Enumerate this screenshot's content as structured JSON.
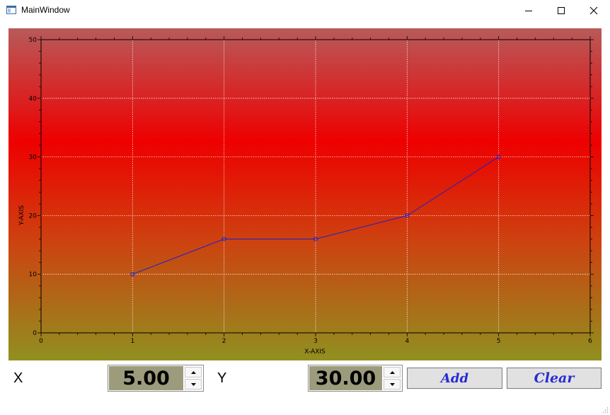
{
  "window": {
    "title": "MainWindow",
    "minimize_icon": "minimize-icon",
    "maximize_icon": "maximize-icon",
    "close_icon": "close-icon"
  },
  "controls": {
    "x_label": "X",
    "y_label": "Y",
    "x_value": "5.00",
    "y_value": "30.00",
    "add_label": "Add",
    "clear_label": "Clear",
    "button_text_color": "#2a2ad4",
    "spin_bg_color": "#9c9c7c"
  },
  "chart_data": {
    "type": "line",
    "title": "",
    "xlabel": "X-AXIS",
    "ylabel": "Y-AXIS",
    "xlim": [
      0,
      6
    ],
    "ylim": [
      0,
      50
    ],
    "x_ticks": [
      0,
      1,
      2,
      3,
      4,
      5,
      6
    ],
    "y_ticks": [
      0,
      10,
      20,
      30,
      40,
      50
    ],
    "grid": true,
    "series": [
      {
        "x": [
          1,
          2,
          3,
          4,
          5
        ],
        "y": [
          10,
          16,
          16,
          20,
          30
        ],
        "color": "#2020c8"
      }
    ],
    "background_gradient": [
      "#b85a5a",
      "#ee0000",
      "#cc4410",
      "#909020"
    ]
  }
}
